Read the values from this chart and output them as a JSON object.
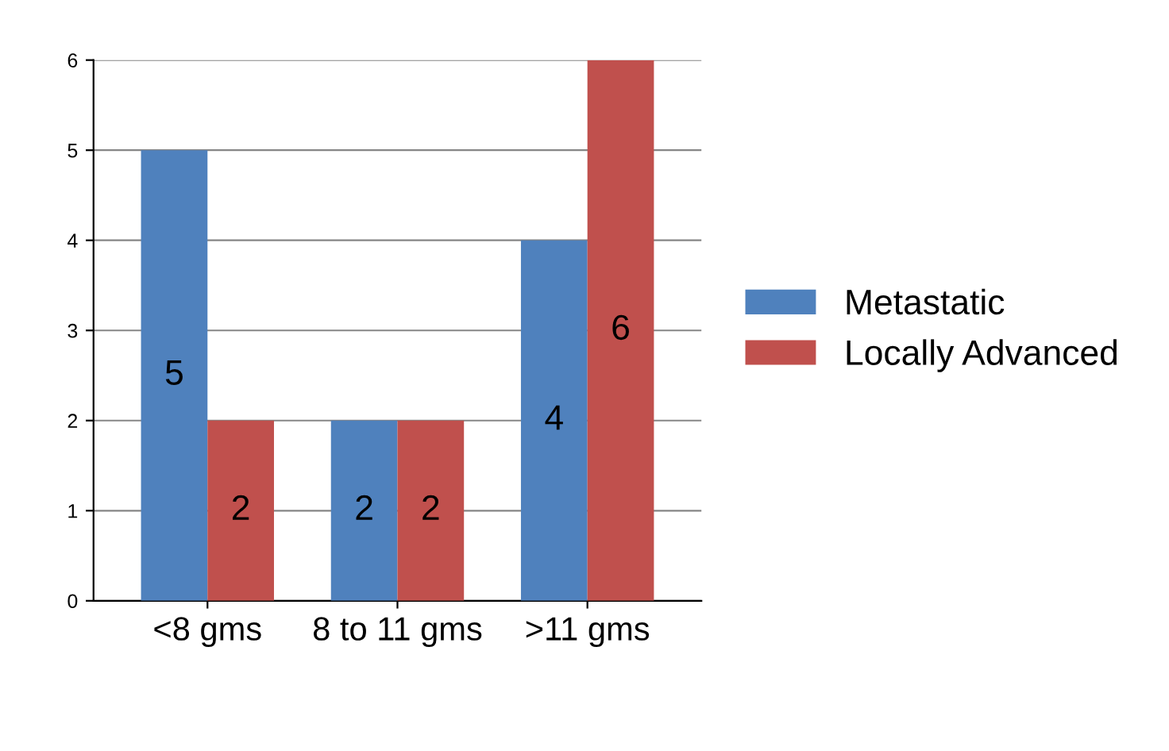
{
  "chart_data": {
    "type": "bar",
    "categories": [
      "<8 gms",
      "8 to 11 gms",
      ">11 gms"
    ],
    "series": [
      {
        "name": "Metastatic",
        "color": "#4f81bd",
        "values": [
          5,
          2,
          4
        ]
      },
      {
        "name": "Locally Advanced",
        "color": "#c0504d",
        "values": [
          2,
          2,
          6
        ]
      }
    ],
    "ylim": [
      0,
      6
    ],
    "yticks": [
      0,
      1,
      2,
      3,
      4,
      5,
      6
    ],
    "grid": "y",
    "legend": "right",
    "data_labels": true
  }
}
